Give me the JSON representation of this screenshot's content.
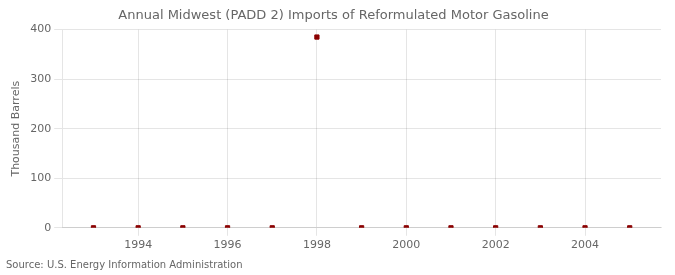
{
  "chart_data": {
    "type": "scatter",
    "title": "Annual Midwest (PADD 2) Imports of Reformulated Motor Gasoline",
    "ylabel": "Thousand Barrels",
    "annotation": "Source: U.S. Energy Information Administration",
    "x": [
      1993,
      1994,
      1995,
      1996,
      1997,
      1998,
      1999,
      2000,
      2001,
      2002,
      2003,
      2004,
      2005
    ],
    "values": [
      0,
      0,
      0,
      0,
      0,
      385,
      0,
      0,
      0,
      0,
      0,
      0,
      0
    ],
    "color": "#8b0000",
    "marker": "square",
    "xlim": [
      1992.3,
      2005.7
    ],
    "xticks": [
      1994,
      1996,
      1998,
      2000,
      2002,
      2004
    ],
    "ylim": [
      0,
      400
    ],
    "yticks": [
      0,
      100,
      200,
      300,
      400
    ],
    "grid": true
  }
}
